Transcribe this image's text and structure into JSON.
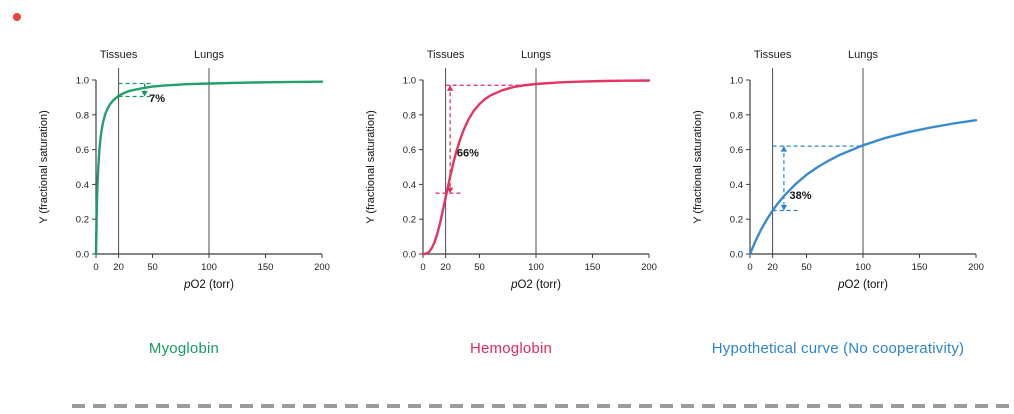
{
  "figure": {
    "background": "#ffffff",
    "axis_color": "#3f3f3f",
    "refline_color": "#4d4d4d",
    "annotation_text_color": "#141414",
    "divider_color": "#9c9c9c",
    "window_dot_color": "#e8433d"
  },
  "chart_data": [
    {
      "type": "line",
      "title": "Myoglobin",
      "color": "#169a62",
      "xlabel_p": "p",
      "xlabel_rest": "O2 (torr)",
      "ylabel": "Y (fractional saturation)",
      "xlim": [
        0,
        200
      ],
      "ylim": [
        0,
        1.0
      ],
      "xticks": [
        0,
        20,
        50,
        100,
        150,
        200
      ],
      "yticks": [
        0.0,
        0.2,
        0.4,
        0.6,
        0.8,
        1.0
      ],
      "reference_lines": [
        {
          "x": 20,
          "label": "Tissues"
        },
        {
          "x": 100,
          "label": "Lungs"
        }
      ],
      "series": [
        {
          "name": "Myoglobin",
          "x": [
            0,
            0.5,
            1,
            1.5,
            2,
            3,
            4,
            5,
            6,
            8,
            10,
            12,
            15,
            20,
            25,
            30,
            40,
            50,
            60,
            80,
            100,
            125,
            150,
            175,
            200
          ],
          "y": [
            0,
            0.2,
            0.333,
            0.429,
            0.5,
            0.6,
            0.667,
            0.714,
            0.75,
            0.8,
            0.833,
            0.857,
            0.882,
            0.909,
            0.926,
            0.938,
            0.952,
            0.962,
            0.968,
            0.976,
            0.98,
            0.984,
            0.987,
            0.989,
            0.99
          ]
        }
      ],
      "annotation": {
        "label": "7%",
        "heads": "down",
        "guides": [
          {
            "y": 0.98,
            "x0": 20,
            "x1": 49
          },
          {
            "y": 0.905,
            "x0": 20,
            "x1": 49
          }
        ],
        "arrow": {
          "x": 43,
          "y0": 0.905,
          "y1": 0.98
        },
        "label_pos": {
          "x": 47,
          "y": 0.875
        }
      }
    },
    {
      "type": "line",
      "title": "Hemoglobin",
      "color": "#e22a5b",
      "xlabel_p": "p",
      "xlabel_rest": "O2 (torr)",
      "ylabel": "Y (fractional saturation)",
      "xlim": [
        0,
        200
      ],
      "ylim": [
        0,
        1.0
      ],
      "xticks": [
        0,
        20,
        50,
        100,
        150,
        200
      ],
      "yticks": [
        0.0,
        0.2,
        0.4,
        0.6,
        0.8,
        1.0
      ],
      "reference_lines": [
        {
          "x": 20,
          "label": "Tissues"
        },
        {
          "x": 100,
          "label": "Lungs"
        }
      ],
      "series": [
        {
          "name": "Hemoglobin",
          "x": [
            0,
            2,
            5,
            8,
            10,
            12,
            15,
            18,
            20,
            22,
            24,
            26,
            28,
            30,
            33,
            36,
            40,
            45,
            50,
            55,
            60,
            70,
            80,
            90,
            100,
            120,
            140,
            160,
            180,
            200
          ],
          "y": [
            0,
            0.001,
            0.01,
            0.036,
            0.065,
            0.103,
            0.176,
            0.263,
            0.324,
            0.385,
            0.444,
            0.5,
            0.552,
            0.599,
            0.661,
            0.713,
            0.77,
            0.823,
            0.862,
            0.891,
            0.912,
            0.941,
            0.959,
            0.97,
            0.977,
            0.986,
            0.991,
            0.994,
            0.996,
            0.997
          ]
        }
      ],
      "annotation": {
        "label": "66%",
        "heads": "both",
        "guides": [
          {
            "y": 0.97,
            "x0": 20,
            "x1": 96
          },
          {
            "y": 0.35,
            "x0": 11,
            "x1": 34
          }
        ],
        "arrow": {
          "x": 24,
          "y0": 0.35,
          "y1": 0.97
        },
        "label_pos": {
          "x": 30,
          "y": 0.56
        }
      }
    },
    {
      "type": "line",
      "title": "Hypothetical curve (No cooperativity)",
      "color": "#2e85cf",
      "xlabel_p": "p",
      "xlabel_rest": "O2 (torr)",
      "ylabel": "Y (fractional saturation)",
      "xlim": [
        0,
        200
      ],
      "ylim": [
        0,
        1.0
      ],
      "xticks": [
        0,
        20,
        50,
        100,
        150,
        200
      ],
      "yticks": [
        0.0,
        0.2,
        0.4,
        0.6,
        0.8,
        1.0
      ],
      "reference_lines": [
        {
          "x": 20,
          "label": "Tissues"
        },
        {
          "x": 100,
          "label": "Lungs"
        }
      ],
      "series": [
        {
          "name": "Hypothetical",
          "x": [
            0,
            5,
            10,
            15,
            20,
            25,
            30,
            40,
            50,
            60,
            70,
            80,
            100,
            120,
            140,
            160,
            180,
            200
          ],
          "y": [
            0,
            0.077,
            0.143,
            0.2,
            0.25,
            0.294,
            0.333,
            0.4,
            0.455,
            0.5,
            0.538,
            0.571,
            0.625,
            0.667,
            0.7,
            0.727,
            0.75,
            0.769
          ]
        }
      ],
      "annotation": {
        "label": "38%",
        "heads": "both",
        "guides": [
          {
            "y": 0.62,
            "x0": 20,
            "x1": 100
          },
          {
            "y": 0.25,
            "x0": 20,
            "x1": 42
          }
        ],
        "arrow": {
          "x": 30,
          "y0": 0.25,
          "y1": 0.62
        },
        "label_pos": {
          "x": 35,
          "y": 0.315
        }
      }
    }
  ]
}
